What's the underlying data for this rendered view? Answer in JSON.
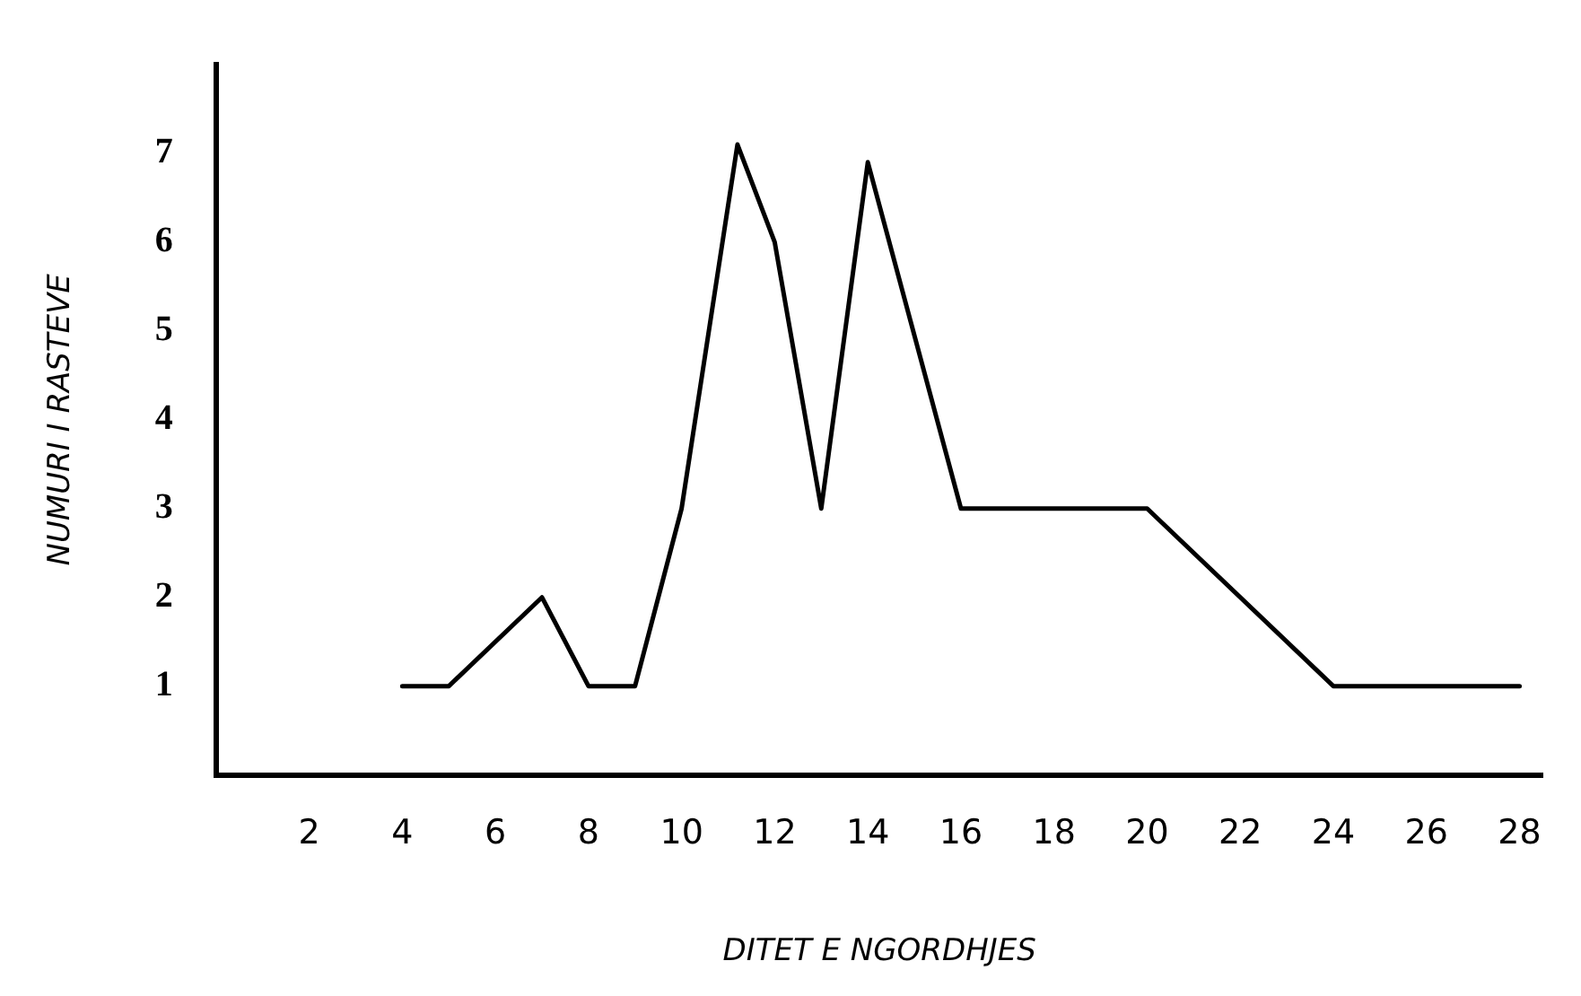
{
  "chart_data": {
    "type": "line",
    "xlabel": "DITET E NGORDHJES",
    "ylabel": "NUMURI I RASTEVE",
    "x": [
      4,
      5,
      7,
      8,
      9,
      10,
      11.2,
      12,
      13,
      14,
      16,
      20,
      24,
      28
    ],
    "series": [
      {
        "color": "#000000",
        "values": [
          1,
          1,
          2,
          1,
          1,
          3,
          7.1,
          6,
          3,
          6.9,
          3,
          3,
          1,
          1
        ]
      }
    ],
    "xlim": [
      0,
      28.5
    ],
    "xticks": [
      2,
      4,
      6,
      8,
      10,
      12,
      14,
      16,
      18,
      20,
      22,
      24,
      26,
      28
    ],
    "ylim": [
      0,
      8
    ],
    "yticks": [
      1,
      2,
      3,
      4,
      5,
      6,
      7
    ],
    "grid": false,
    "legend": false,
    "marker": "none",
    "line_style": "solid"
  }
}
